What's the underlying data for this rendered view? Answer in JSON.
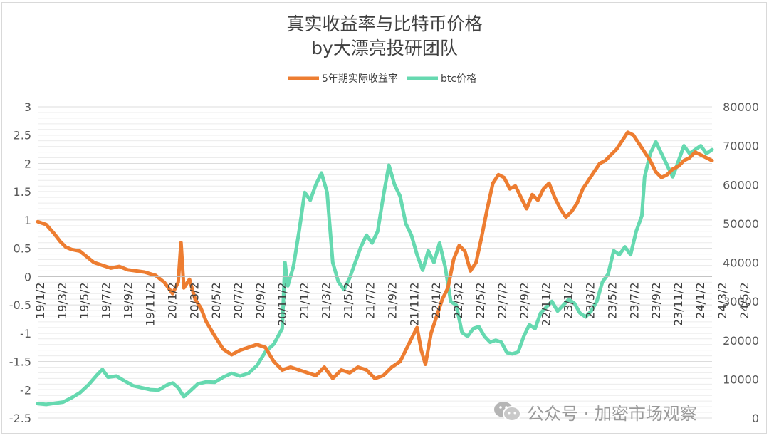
{
  "chart_data": {
    "type": "line",
    "title": "真实收益率与比特币价格",
    "subtitle": "by大漂亮投研团队",
    "legend": "top",
    "series": [
      {
        "name": "5年期实际收益率",
        "color": "#ed7d31",
        "axis": "left",
        "points": [
          [
            0,
            0.97
          ],
          [
            0.6,
            0.92
          ],
          [
            1.2,
            0.75
          ],
          [
            1.6,
            0.62
          ],
          [
            2.0,
            0.52
          ],
          [
            2.4,
            0.48
          ],
          [
            3.0,
            0.45
          ],
          [
            3.5,
            0.35
          ],
          [
            4.0,
            0.25
          ],
          [
            4.6,
            0.2
          ],
          [
            5.2,
            0.15
          ],
          [
            5.8,
            0.18
          ],
          [
            6.4,
            0.12
          ],
          [
            7.0,
            0.1
          ],
          [
            7.6,
            0.08
          ],
          [
            8.4,
            0.02
          ],
          [
            9.0,
            -0.1
          ],
          [
            9.6,
            -0.3
          ],
          [
            10.0,
            -0.1
          ],
          [
            10.2,
            0.6
          ],
          [
            10.4,
            -0.2
          ],
          [
            10.8,
            -0.05
          ],
          [
            11.2,
            -0.4
          ],
          [
            11.6,
            -0.55
          ],
          [
            12.0,
            -0.8
          ],
          [
            12.6,
            -1.05
          ],
          [
            13.2,
            -1.28
          ],
          [
            13.8,
            -1.38
          ],
          [
            14.4,
            -1.3
          ],
          [
            15.0,
            -1.25
          ],
          [
            15.6,
            -1.2
          ],
          [
            16.2,
            -1.25
          ],
          [
            16.8,
            -1.5
          ],
          [
            17.4,
            -1.65
          ],
          [
            18.0,
            -1.6
          ],
          [
            18.6,
            -1.65
          ],
          [
            19.2,
            -1.7
          ],
          [
            19.8,
            -1.75
          ],
          [
            20.4,
            -1.6
          ],
          [
            21.0,
            -1.8
          ],
          [
            21.6,
            -1.65
          ],
          [
            22.2,
            -1.7
          ],
          [
            22.8,
            -1.6
          ],
          [
            23.4,
            -1.65
          ],
          [
            24.0,
            -1.8
          ],
          [
            24.6,
            -1.75
          ],
          [
            25.2,
            -1.6
          ],
          [
            25.8,
            -1.5
          ],
          [
            26.4,
            -1.2
          ],
          [
            27.0,
            -0.9
          ],
          [
            27.3,
            -1.3
          ],
          [
            27.6,
            -1.55
          ],
          [
            28.0,
            -1.0
          ],
          [
            28.4,
            -0.7
          ],
          [
            28.8,
            -0.4
          ],
          [
            29.2,
            -0.2
          ],
          [
            29.6,
            0.3
          ],
          [
            30.0,
            0.55
          ],
          [
            30.4,
            0.45
          ],
          [
            30.8,
            0.1
          ],
          [
            31.2,
            0.25
          ],
          [
            31.6,
            0.7
          ],
          [
            32.0,
            1.2
          ],
          [
            32.4,
            1.65
          ],
          [
            32.8,
            1.8
          ],
          [
            33.2,
            1.75
          ],
          [
            33.6,
            1.55
          ],
          [
            34.0,
            1.6
          ],
          [
            34.4,
            1.4
          ],
          [
            34.8,
            1.2
          ],
          [
            35.2,
            1.45
          ],
          [
            35.6,
            1.35
          ],
          [
            36.0,
            1.55
          ],
          [
            36.4,
            1.65
          ],
          [
            36.8,
            1.4
          ],
          [
            37.2,
            1.2
          ],
          [
            37.6,
            1.05
          ],
          [
            38.0,
            1.15
          ],
          [
            38.4,
            1.3
          ],
          [
            38.8,
            1.55
          ],
          [
            39.2,
            1.7
          ],
          [
            39.6,
            1.85
          ],
          [
            40.0,
            2.0
          ],
          [
            40.4,
            2.05
          ],
          [
            40.8,
            2.15
          ],
          [
            41.2,
            2.25
          ],
          [
            41.6,
            2.4
          ],
          [
            42.0,
            2.55
          ],
          [
            42.4,
            2.5
          ],
          [
            42.8,
            2.35
          ],
          [
            43.2,
            2.2
          ],
          [
            43.6,
            2.05
          ],
          [
            44.0,
            1.85
          ],
          [
            44.4,
            1.75
          ],
          [
            44.8,
            1.8
          ],
          [
            45.2,
            1.9
          ],
          [
            45.6,
            1.95
          ],
          [
            46.0,
            2.05
          ],
          [
            46.4,
            2.1
          ],
          [
            46.8,
            2.2
          ],
          [
            47.2,
            2.15
          ],
          [
            47.6,
            2.1
          ],
          [
            48.0,
            2.05
          ]
        ]
      },
      {
        "name": "btc价格",
        "color": "#66d9b0",
        "axis": "right",
        "points": [
          [
            0,
            3700
          ],
          [
            0.6,
            3500
          ],
          [
            1.2,
            3800
          ],
          [
            1.8,
            4100
          ],
          [
            2.4,
            5200
          ],
          [
            3.0,
            6500
          ],
          [
            3.6,
            8500
          ],
          [
            4.2,
            11000
          ],
          [
            4.6,
            12500
          ],
          [
            5.0,
            10500
          ],
          [
            5.6,
            10800
          ],
          [
            6.2,
            9500
          ],
          [
            6.8,
            8300
          ],
          [
            7.4,
            7800
          ],
          [
            8.0,
            7300
          ],
          [
            8.6,
            7200
          ],
          [
            9.2,
            8500
          ],
          [
            9.6,
            9000
          ],
          [
            10.0,
            7800
          ],
          [
            10.4,
            5500
          ],
          [
            10.8,
            6800
          ],
          [
            11.4,
            8800
          ],
          [
            12.0,
            9300
          ],
          [
            12.6,
            9200
          ],
          [
            13.2,
            10500
          ],
          [
            13.8,
            11500
          ],
          [
            14.4,
            10800
          ],
          [
            15.0,
            11500
          ],
          [
            15.6,
            13500
          ],
          [
            16.2,
            17000
          ],
          [
            16.8,
            19000
          ],
          [
            17.4,
            23000
          ],
          [
            17.6,
            40000
          ],
          [
            17.8,
            34000
          ],
          [
            18.2,
            39000
          ],
          [
            18.6,
            48000
          ],
          [
            19.0,
            58000
          ],
          [
            19.4,
            56000
          ],
          [
            19.8,
            60000
          ],
          [
            20.2,
            63000
          ],
          [
            20.6,
            58000
          ],
          [
            21.0,
            40000
          ],
          [
            21.4,
            35000
          ],
          [
            21.8,
            33000
          ],
          [
            22.2,
            36000
          ],
          [
            22.6,
            40000
          ],
          [
            23.0,
            44000
          ],
          [
            23.4,
            47000
          ],
          [
            23.8,
            45000
          ],
          [
            24.2,
            48000
          ],
          [
            24.6,
            57000
          ],
          [
            25.0,
            65000
          ],
          [
            25.4,
            60000
          ],
          [
            25.8,
            57000
          ],
          [
            26.2,
            50000
          ],
          [
            26.6,
            47000
          ],
          [
            27.0,
            42000
          ],
          [
            27.4,
            38000
          ],
          [
            27.8,
            43000
          ],
          [
            28.2,
            40000
          ],
          [
            28.6,
            45000
          ],
          [
            29.0,
            39000
          ],
          [
            29.4,
            30000
          ],
          [
            29.8,
            29000
          ],
          [
            30.2,
            22000
          ],
          [
            30.6,
            21000
          ],
          [
            31.0,
            23000
          ],
          [
            31.4,
            23500
          ],
          [
            31.8,
            21000
          ],
          [
            32.2,
            19500
          ],
          [
            32.6,
            20000
          ],
          [
            33.0,
            19500
          ],
          [
            33.4,
            16800
          ],
          [
            33.8,
            16500
          ],
          [
            34.2,
            17000
          ],
          [
            34.6,
            21000
          ],
          [
            35.0,
            24000
          ],
          [
            35.4,
            23000
          ],
          [
            35.8,
            27000
          ],
          [
            36.2,
            28500
          ],
          [
            36.6,
            30000
          ],
          [
            37.0,
            27500
          ],
          [
            37.4,
            29000
          ],
          [
            37.8,
            30500
          ],
          [
            38.2,
            29500
          ],
          [
            38.6,
            27000
          ],
          [
            39.0,
            26000
          ],
          [
            39.4,
            27500
          ],
          [
            39.8,
            30000
          ],
          [
            40.2,
            35000
          ],
          [
            40.6,
            37000
          ],
          [
            41.0,
            43000
          ],
          [
            41.4,
            42000
          ],
          [
            41.8,
            44000
          ],
          [
            42.2,
            42000
          ],
          [
            42.6,
            48000
          ],
          [
            43.0,
            52000
          ],
          [
            43.2,
            62000
          ],
          [
            43.6,
            68000
          ],
          [
            44.0,
            71000
          ],
          [
            44.4,
            68000
          ],
          [
            44.8,
            65000
          ],
          [
            45.2,
            62000
          ],
          [
            45.6,
            66000
          ],
          [
            46.0,
            70000
          ],
          [
            46.4,
            68000
          ],
          [
            46.8,
            69000
          ],
          [
            47.2,
            70000
          ],
          [
            47.6,
            68000
          ],
          [
            48.0,
            69000
          ]
        ]
      }
    ],
    "x_tick_labels": [
      "19/1/2",
      "19/3/2",
      "19/5/2",
      "19/7/2",
      "19/9/2",
      "19/11/2",
      "20/1/2",
      "20/3/2",
      "20/5/2",
      "20/7/2",
      "20/9/2",
      "20/11/2",
      "21/1/2",
      "21/3/2",
      "21/5/2",
      "21/7/2",
      "21/9/2",
      "21/11/2",
      "22/1/2",
      "22/3/2",
      "22/5/2",
      "22/7/2",
      "22/9/2",
      "22/11/2",
      "23/1/2",
      "23/3/2",
      "23/5/2",
      "23/7/2",
      "23/9/2",
      "23/11/2",
      "24/1/2",
      "24/3/2",
      "24/5/2"
    ],
    "x_range": [
      0,
      48
    ],
    "y_left": {
      "range": [
        -2.5,
        3
      ],
      "ticks": [
        -2.5,
        -2,
        -1.5,
        -1,
        -0.5,
        0,
        0.5,
        1,
        1.5,
        2,
        2.5,
        3
      ],
      "tick_labels": [
        "-2.5",
        "-2",
        "-1.5",
        "-1",
        "-0.5",
        "0",
        "0.5",
        "1",
        "1.5",
        "2",
        "2.5",
        "3"
      ]
    },
    "y_right": {
      "range": [
        0,
        80000
      ],
      "ticks": [
        0,
        10000,
        20000,
        30000,
        40000,
        50000,
        60000,
        70000,
        80000
      ],
      "tick_labels": [
        "0",
        "10000",
        "20000",
        "30000",
        "40000",
        "50000",
        "60000",
        "70000",
        "80000"
      ]
    },
    "grid": true
  },
  "watermark": {
    "icon": "wechat-icon",
    "text": "公众号 · 加密市场观察"
  }
}
